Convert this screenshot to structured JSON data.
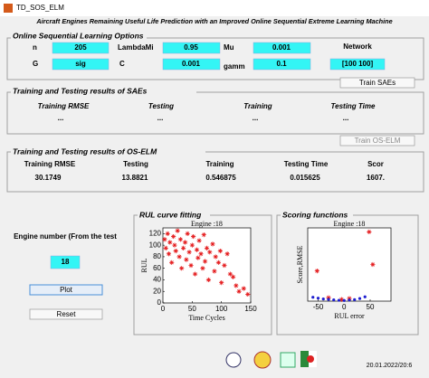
{
  "window": {
    "title": "TD_SOS_ELM"
  },
  "header": {
    "title": "Aircraft Engines Remaining Useful Life Prediction with an Improved Online Sequential Extreme Learning Machine"
  },
  "options": {
    "title": "Online Sequential Learning Options",
    "fields": [
      {
        "label": "n",
        "value": "205"
      },
      {
        "label": "LambdaMi",
        "value": "0.95"
      },
      {
        "label": "Mu",
        "value": "0.001"
      },
      {
        "label": "G",
        "value": "sig"
      },
      {
        "label": "C",
        "value": "0.001"
      },
      {
        "label": "gamm",
        "value": "0.1"
      },
      {
        "label": "Network",
        "value": "[100 100]"
      }
    ]
  },
  "sae": {
    "title": "Training and Testing results of SAEs",
    "button": "Train SAEs",
    "columns": [
      "Training RMSE",
      "Testing",
      "Training",
      "Testing Time"
    ],
    "values": [
      "...",
      "...",
      "...",
      "..."
    ]
  },
  "oselm": {
    "title": "Training and Testing results of OS-ELM",
    "button": "Train OS-ELM",
    "columns": [
      "Training RMSE",
      "Testing",
      "Training",
      "Testing Time",
      "Scor"
    ],
    "values": [
      "30.1749",
      "13.8821",
      "0.546875",
      "0.015625",
      "1607."
    ]
  },
  "engine": {
    "label": "Engine number (From the test",
    "value": "18",
    "plot": "Plot",
    "reset": "Reset"
  },
  "rul_plot": {
    "panel_title": "RUL curve fitting",
    "type": "scatter",
    "title": "Engine :18",
    "x_label": "Time Cycles",
    "y_label": "RUL",
    "xlim": [
      0,
      150
    ],
    "xticks": [
      0,
      50,
      100,
      150
    ],
    "ylim": [
      0,
      130
    ],
    "yticks": [
      0,
      20,
      40,
      60,
      80,
      100,
      120
    ],
    "series": [
      {
        "color": "#e41a1c",
        "marker": "asterisk",
        "x": [
          3,
          5,
          8,
          10,
          12,
          15,
          18,
          20,
          22,
          25,
          28,
          30,
          32,
          35,
          38,
          40,
          42,
          45,
          48,
          50,
          52,
          55,
          58,
          60,
          62,
          65,
          68,
          70,
          72,
          75,
          78,
          80,
          85,
          88,
          90,
          95,
          98,
          100,
          105,
          110,
          115,
          120,
          125,
          130,
          138,
          145
        ],
        "values": [
          110,
          95,
          120,
          85,
          105,
          70,
          115,
          100,
          90,
          125,
          80,
          110,
          60,
          95,
          105,
          75,
          120,
          88,
          65,
          100,
          115,
          50,
          92,
          78,
          108,
          85,
          60,
          118,
          72,
          95,
          40,
          88,
          102,
          55,
          80,
          70,
          90,
          35,
          65,
          85,
          50,
          45,
          30,
          20,
          25,
          15
        ]
      }
    ]
  },
  "score_plot": {
    "panel_title": "Scoring functions",
    "type": "scatter",
    "title": "Engine :18",
    "x_label": "RUL error",
    "y_label": "Score,RMSE",
    "xlim": [
      -70,
      90
    ],
    "xticks": [
      -50,
      0,
      50
    ],
    "ylim": [
      0,
      1700
    ],
    "series": [
      {
        "color": "#e41a1c",
        "marker": "asterisk",
        "x": [
          -52,
          48,
          55,
          -30,
          10,
          -5
        ],
        "values": [
          700,
          1607,
          850,
          80,
          60,
          40
        ]
      },
      {
        "color": "#1f1fd0",
        "marker": "dot",
        "x": [
          -60,
          -50,
          -40,
          -30,
          -20,
          -10,
          0,
          10,
          20,
          30,
          40
        ],
        "values": [
          90,
          70,
          50,
          40,
          30,
          20,
          15,
          25,
          35,
          60,
          100
        ]
      }
    ]
  },
  "footer": {
    "date": "20.01.2022/20:6"
  }
}
